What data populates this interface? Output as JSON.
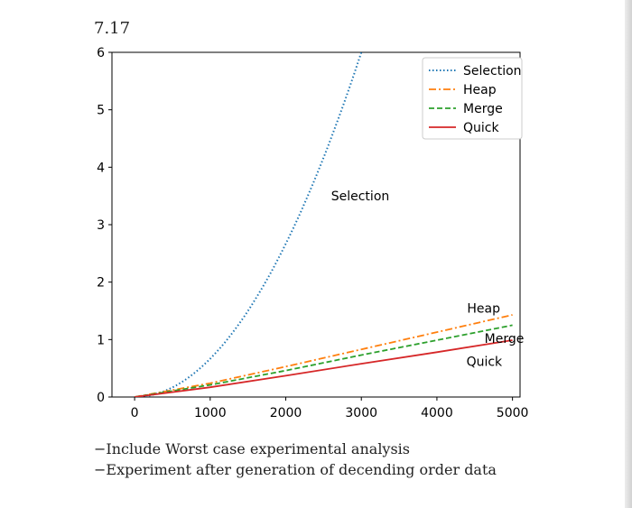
{
  "problem_number": "7.17",
  "notes": [
    "−Include Worst case experimental analysis",
    "−Experiment after generation of decending order data"
  ],
  "chart_data": {
    "type": "line",
    "title": "",
    "xlabel": "",
    "ylabel": "",
    "xlim": [
      -300,
      5100
    ],
    "ylim": [
      0,
      6
    ],
    "xticks": [
      0,
      1000,
      2000,
      3000,
      4000,
      5000
    ],
    "yticks": [
      0,
      1,
      2,
      3,
      4,
      5,
      6
    ],
    "grid": false,
    "legend_position": "top-right",
    "series": [
      {
        "name": "Selection",
        "style": "dotted",
        "color": "#1f77b4",
        "x": [
          0,
          500,
          1000,
          1500,
          2000,
          2500,
          3000
        ],
        "y": [
          0,
          0.167,
          0.667,
          1.5,
          2.667,
          4.167,
          6.0
        ]
      },
      {
        "name": "Heap",
        "style": "dashdot",
        "color": "#ff7f0e",
        "x": [
          0,
          1000,
          2000,
          3000,
          4000,
          5000
        ],
        "y": [
          0,
          0.24,
          0.53,
          0.83,
          1.13,
          1.43
        ]
      },
      {
        "name": "Merge",
        "style": "dashed",
        "color": "#2ca02c",
        "x": [
          0,
          1000,
          2000,
          3000,
          4000,
          5000
        ],
        "y": [
          0,
          0.21,
          0.46,
          0.73,
          0.99,
          1.25
        ]
      },
      {
        "name": "Quick",
        "style": "solid",
        "color": "#d62728",
        "x": [
          0,
          1000,
          2000,
          3000,
          4000,
          5000
        ],
        "y": [
          0,
          0.17,
          0.37,
          0.58,
          0.78,
          0.99
        ]
      }
    ],
    "annotations": [
      {
        "text": "Selection",
        "x": 2600,
        "y": 3.5
      },
      {
        "text": "Heap",
        "x": 4400,
        "y": 1.55
      },
      {
        "text": "Merge",
        "x": 4630,
        "y": 1.02
      },
      {
        "text": "Quick",
        "x": 4390,
        "y": 0.62
      }
    ]
  }
}
